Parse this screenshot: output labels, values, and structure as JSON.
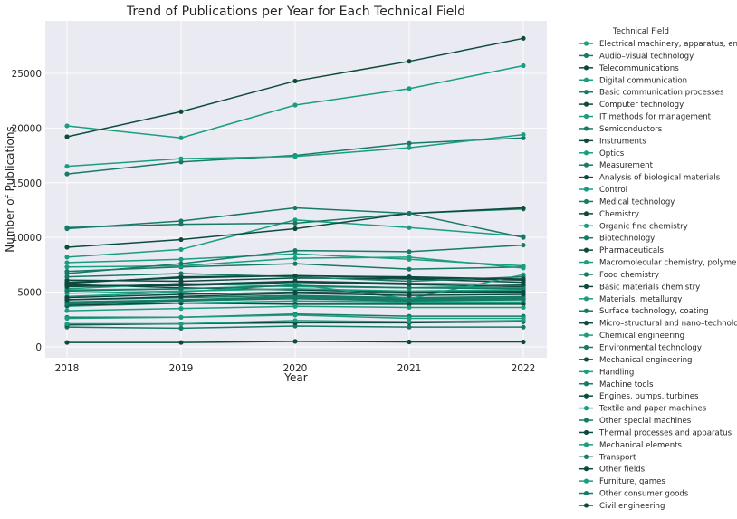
{
  "chart_data": {
    "type": "line",
    "title": "Trend of Publications per Year for Each Technical Field",
    "xlabel": "Year",
    "ylabel": "Number of Publications",
    "x": [
      "2018",
      "2019",
      "2020",
      "2021",
      "2022"
    ],
    "yticks": [
      "0",
      "5000",
      "10000",
      "15000",
      "20000",
      "25000"
    ],
    "ylim": [
      -1000,
      29800
    ],
    "grid": true,
    "legend_title": "Technical Field",
    "legend_position": "outside-right",
    "colors": [
      "#1a9e80",
      "#167a65",
      "#0d4a3d"
    ],
    "series": [
      {
        "name": "Electrical machinery, apparatus, energy",
        "values": [
          8200,
          8900,
          11600,
          10900,
          10100
        ]
      },
      {
        "name": "Audio–visual technology",
        "values": [
          4300,
          4500,
          4700,
          4500,
          4600
        ]
      },
      {
        "name": "Telecommunications",
        "values": [
          5700,
          5400,
          5200,
          5000,
          5100
        ]
      },
      {
        "name": "Digital communication",
        "values": [
          20200,
          19100,
          22100,
          23600,
          25700
        ]
      },
      {
        "name": "Basic communication processes",
        "values": [
          1800,
          1700,
          1900,
          1800,
          1800
        ]
      },
      {
        "name": "Computer technology",
        "values": [
          19200,
          21500,
          24300,
          26100,
          28200
        ]
      },
      {
        "name": "IT methods for management",
        "values": [
          5300,
          5800,
          5500,
          5400,
          5600
        ]
      },
      {
        "name": "Semiconductors",
        "values": [
          6900,
          7300,
          7600,
          7100,
          7300
        ]
      },
      {
        "name": "Instruments",
        "values": [
          5800,
          6400,
          6500,
          6300,
          6100
        ]
      },
      {
        "name": "Optics",
        "values": [
          3700,
          4000,
          4200,
          4100,
          4100
        ]
      },
      {
        "name": "Measurement",
        "values": [
          15800,
          16900,
          17500,
          18600,
          19100
        ]
      },
      {
        "name": "Analysis of biological materials",
        "values": [
          2000,
          2100,
          2200,
          2200,
          2300
        ]
      },
      {
        "name": "Control",
        "values": [
          7700,
          8000,
          8500,
          8000,
          7400
        ]
      },
      {
        "name": "Medical technology",
        "values": [
          10900,
          11200,
          11300,
          12200,
          12600
        ]
      },
      {
        "name": "Chemistry",
        "values": [
          9100,
          9800,
          10800,
          12200,
          12700
        ]
      },
      {
        "name": "Organic fine chemistry",
        "values": [
          16500,
          17200,
          17400,
          18200,
          19400
        ]
      },
      {
        "name": "Biotechnology",
        "values": [
          10800,
          11500,
          12700,
          12200,
          10000
        ]
      },
      {
        "name": "Pharmaceuticals",
        "values": [
          6100,
          6000,
          6300,
          6200,
          5900
        ]
      },
      {
        "name": "Macromolecular chemistry, polymers",
        "values": [
          7300,
          7400,
          8100,
          8200,
          7200
        ]
      },
      {
        "name": "Food chemistry",
        "values": [
          4100,
          4300,
          4600,
          4400,
          4500
        ]
      },
      {
        "name": "Basic materials chemistry",
        "values": [
          5600,
          5600,
          5900,
          5700,
          5500
        ]
      },
      {
        "name": "Materials, metallurgy",
        "values": [
          5200,
          5300,
          5600,
          5400,
          5400
        ]
      },
      {
        "name": "Surface technology, coating",
        "values": [
          4000,
          4200,
          4400,
          4200,
          4300
        ]
      },
      {
        "name": "Micro–structural and nano–technology",
        "values": [
          400,
          400,
          500,
          450,
          450
        ]
      },
      {
        "name": "Chemical engineering",
        "values": [
          4900,
          5100,
          5300,
          5100,
          5200
        ]
      },
      {
        "name": "Environmental technology",
        "values": [
          2700,
          2700,
          3000,
          2800,
          2800
        ]
      },
      {
        "name": "Mechanical engineering",
        "values": [
          5500,
          5700,
          6000,
          5800,
          5700
        ]
      },
      {
        "name": "Handling",
        "values": [
          4600,
          5000,
          5700,
          4400,
          6600
        ]
      },
      {
        "name": "Machine tools",
        "values": [
          6700,
          7600,
          8800,
          8700,
          9300
        ]
      },
      {
        "name": "Engines, pumps, turbines",
        "values": [
          3800,
          4000,
          3900,
          3900,
          3900
        ]
      },
      {
        "name": "Textile and paper machines",
        "values": [
          2100,
          2100,
          2400,
          2300,
          2400
        ]
      },
      {
        "name": "Other special machines",
        "values": [
          5100,
          5300,
          5600,
          5400,
          5300
        ]
      },
      {
        "name": "Thermal processes and apparatus",
        "values": [
          4300,
          4600,
          4900,
          4700,
          4800
        ]
      },
      {
        "name": "Mechanical elements",
        "values": [
          3300,
          3500,
          3700,
          3600,
          3600
        ]
      },
      {
        "name": "Transport",
        "values": [
          6400,
          6700,
          6400,
          6000,
          6400
        ]
      },
      {
        "name": "Other fields",
        "values": [
          4500,
          4800,
          5000,
          4900,
          5000
        ]
      },
      {
        "name": "Furniture, games",
        "values": [
          2600,
          2700,
          2900,
          2600,
          2600
        ]
      },
      {
        "name": "Other consumer goods",
        "values": [
          3900,
          4200,
          4500,
          4300,
          4400
        ]
      },
      {
        "name": "Civil engineering",
        "values": [
          5900,
          6300,
          6500,
          6400,
          6200
        ]
      }
    ]
  }
}
